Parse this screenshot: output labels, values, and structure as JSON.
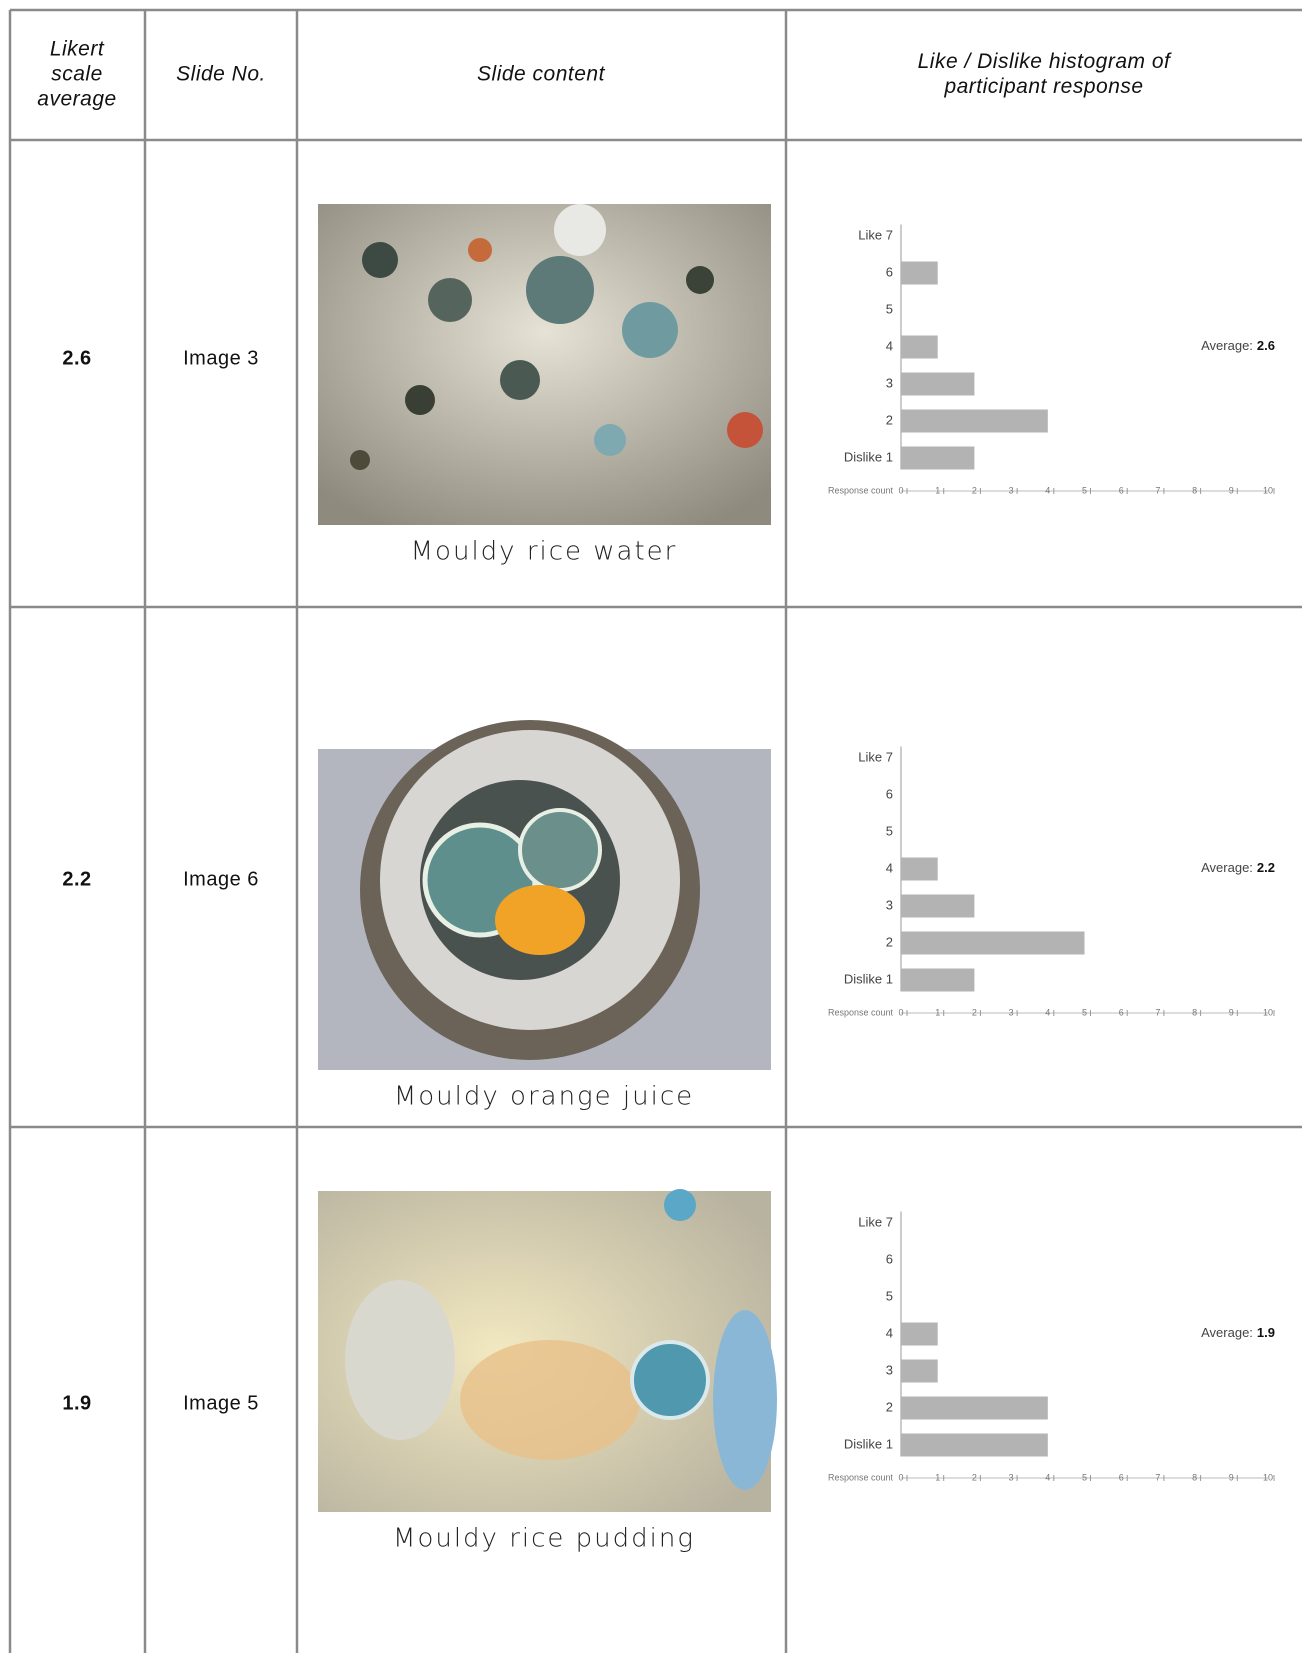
{
  "table": {
    "header": [
      [
        "Likert",
        "scale",
        "average"
      ],
      [
        "Slide No."
      ],
      [
        "Slide content"
      ],
      [
        "Like / Dislike histogram of",
        "participant response"
      ]
    ],
    "rows": [
      {
        "average": 2.6,
        "slide": "Image 3",
        "caption": "Mouldy rice water",
        "histogram": {
          "type": "bar",
          "categories": [
            "Like 7",
            "6",
            "5",
            "4",
            "3",
            "2",
            "Dislike 1"
          ],
          "values": [
            0,
            1,
            0,
            1,
            2,
            4,
            2
          ],
          "color": "#b3b3b3",
          "xlim": [
            0,
            10
          ],
          "xticks": [
            0,
            1,
            2,
            3,
            4,
            5,
            6,
            7,
            8,
            9,
            10
          ],
          "x_label": "Response count",
          "average_label": "Average:"
        }
      },
      {
        "average": 2.2,
        "slide": "Image 6",
        "caption": "Mouldy orange juice",
        "histogram": {
          "type": "bar",
          "categories": [
            "Like 7",
            "6",
            "5",
            "4",
            "3",
            "2",
            "Dislike 1"
          ],
          "values": [
            0,
            0,
            0,
            1,
            2,
            5,
            2
          ],
          "color": "#b3b3b3",
          "xlim": [
            0,
            10
          ],
          "xticks": [
            0,
            1,
            2,
            3,
            4,
            5,
            6,
            7,
            8,
            9,
            10
          ],
          "x_label": "Response count",
          "average_label": "Average:"
        }
      },
      {
        "average": 1.9,
        "slide": "Image 5",
        "caption": "Mouldy rice pudding",
        "histogram": {
          "type": "bar",
          "categories": [
            "Like 7",
            "6",
            "5",
            "4",
            "3",
            "2",
            "Dislike 1"
          ],
          "values": [
            0,
            0,
            0,
            1,
            1,
            4,
            4
          ],
          "color": "#b3b3b3",
          "xlim": [
            0,
            10
          ],
          "xticks": [
            0,
            1,
            2,
            3,
            4,
            5,
            6,
            7,
            8,
            9,
            10
          ],
          "x_label": "Response count",
          "average_label": "Average:"
        }
      }
    ]
  }
}
